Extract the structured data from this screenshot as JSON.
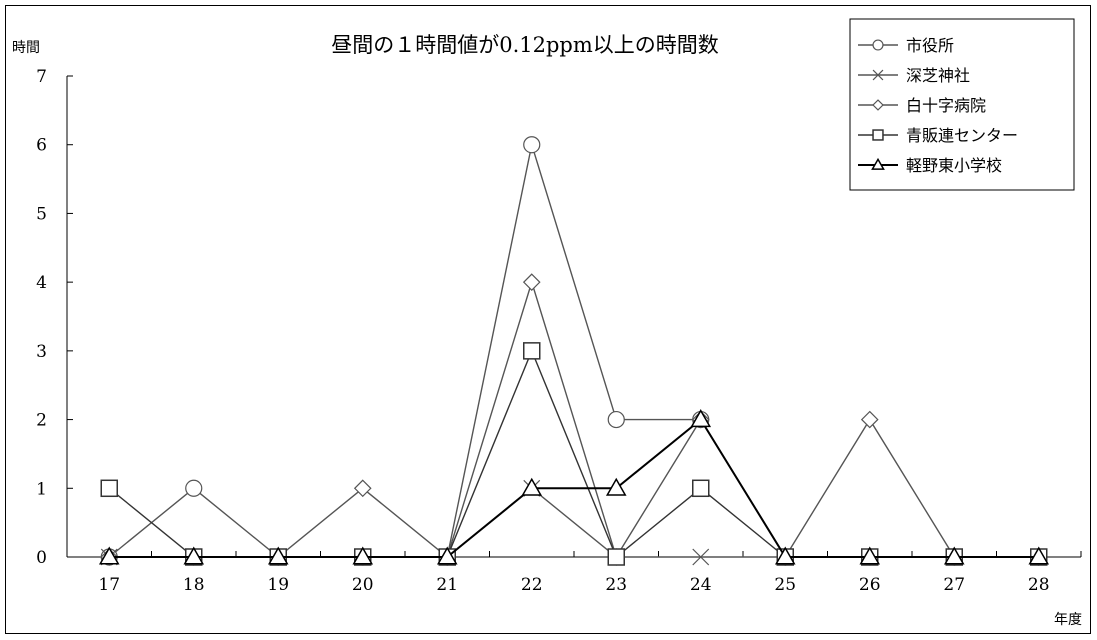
{
  "chart_data": {
    "type": "line",
    "title": "昼間の１時間値が0.12ppm以上の時間数",
    "ylabel": "時間",
    "xlabel": "年度",
    "categories": [
      "17",
      "18",
      "19",
      "20",
      "21",
      "22",
      "23",
      "24",
      "25",
      "26",
      "27",
      "28"
    ],
    "ylim": [
      0,
      7
    ],
    "yticks": [
      0,
      1,
      2,
      3,
      4,
      5,
      6,
      7
    ],
    "grid": false,
    "legend_position": "top-right",
    "series": [
      {
        "name": "市役所",
        "marker": "circle",
        "color": "#555555",
        "values": [
          0,
          1,
          0,
          0,
          0,
          6,
          2,
          2,
          0,
          0,
          0,
          0
        ]
      },
      {
        "name": "深芝神社",
        "marker": "x",
        "color": "#555555",
        "values": [
          0,
          0,
          0,
          0,
          0,
          1,
          0,
          0,
          0,
          0,
          0,
          0
        ]
      },
      {
        "name": "白十字病院",
        "marker": "diamond",
        "color": "#555555",
        "values": [
          0,
          0,
          0,
          1,
          0,
          4,
          0,
          2,
          0,
          2,
          0,
          0
        ]
      },
      {
        "name": "青販連センター",
        "marker": "square",
        "color": "#333333",
        "values": [
          1,
          0,
          0,
          0,
          0,
          3,
          0,
          1,
          0,
          0,
          0,
          0
        ]
      },
      {
        "name": "軽野東小学校",
        "marker": "triangle",
        "color": "#000000",
        "values": [
          0,
          0,
          0,
          0,
          0,
          1,
          1,
          2,
          0,
          0,
          0,
          0
        ]
      }
    ]
  }
}
